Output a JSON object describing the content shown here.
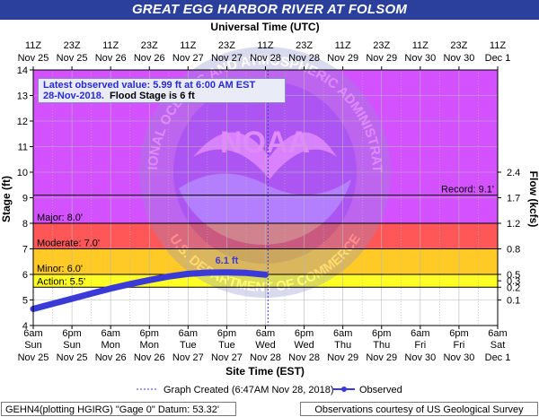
{
  "title": "GREAT EGG HARBOR RIVER AT FOLSOM",
  "top_axis_title": "Universal Time (UTC)",
  "bottom_axis_title": "Site Time (EST)",
  "left_axis_title": "Stage (ft)",
  "right_axis_title": "Flow (kcfs)",
  "top_ticks": [
    {
      "time": "11Z",
      "date": "Nov 25"
    },
    {
      "time": "23Z",
      "date": "Nov 25"
    },
    {
      "time": "11Z",
      "date": "Nov 26"
    },
    {
      "time": "23Z",
      "date": "Nov 26"
    },
    {
      "time": "11Z",
      "date": "Nov 27"
    },
    {
      "time": "23Z",
      "date": "Nov 27"
    },
    {
      "time": "11Z",
      "date": "Nov 28"
    },
    {
      "time": "23Z",
      "date": "Nov 28"
    },
    {
      "time": "11Z",
      "date": "Nov 29"
    },
    {
      "time": "23Z",
      "date": "Nov 29"
    },
    {
      "time": "11Z",
      "date": "Nov 30"
    },
    {
      "time": "23Z",
      "date": "Nov 30"
    },
    {
      "time": "11Z",
      "date": "Dec 1"
    }
  ],
  "bottom_ticks": [
    {
      "time": "6am",
      "day": "Sun",
      "date": "Nov 25"
    },
    {
      "time": "6pm",
      "day": "Sun",
      "date": "Nov 25"
    },
    {
      "time": "6am",
      "day": "Mon",
      "date": "Nov 26"
    },
    {
      "time": "6pm",
      "day": "Mon",
      "date": "Nov 26"
    },
    {
      "time": "6am",
      "day": "Tue",
      "date": "Nov 27"
    },
    {
      "time": "6pm",
      "day": "Tue",
      "date": "Nov 27"
    },
    {
      "time": "6am",
      "day": "Wed",
      "date": "Nov 28"
    },
    {
      "time": "6pm",
      "day": "Wed",
      "date": "Nov 28"
    },
    {
      "time": "6am",
      "day": "Thu",
      "date": "Nov 29"
    },
    {
      "time": "6pm",
      "day": "Thu",
      "date": "Nov 29"
    },
    {
      "time": "6am",
      "day": "Fri",
      "date": "Nov 30"
    },
    {
      "time": "6pm",
      "day": "Fri",
      "date": "Nov 30"
    },
    {
      "time": "6am",
      "day": "Sat",
      "date": "Dec 1"
    }
  ],
  "stage_ticks": [
    4,
    5,
    6,
    7,
    8,
    9,
    10,
    11,
    12,
    13,
    14
  ],
  "flow_ticks": [
    {
      "label": "0.1",
      "stage": 5.0
    },
    {
      "label": "0.2",
      "stage": 5.5
    },
    {
      "label": "0.3",
      "stage": 5.75
    },
    {
      "label": "0.5",
      "stage": 6.0
    },
    {
      "label": "0.8",
      "stage": 7.0
    },
    {
      "label": "1.2",
      "stage": 8.0
    },
    {
      "label": "1.7",
      "stage": 9.0
    },
    {
      "label": "2.4",
      "stage": 10.0
    }
  ],
  "flood_categories": [
    {
      "name": "Action",
      "label": "Action: 5.5'",
      "stage": 5.5,
      "color": "#ffff00"
    },
    {
      "name": "Minor",
      "label": "Minor: 6.0'",
      "stage": 6.0,
      "color": "#ffc000"
    },
    {
      "name": "Moderate",
      "label": "Moderate: 7.0'",
      "stage": 7.0,
      "color": "#ff3a3a"
    },
    {
      "name": "Major",
      "label": "Major: 8.0'",
      "stage": 8.0,
      "color": "#cc33ff"
    }
  ],
  "record": {
    "label": "Record: 9.1'",
    "stage": 9.1
  },
  "latest": {
    "line1": "Latest observed value: 5.99 ft at 6:00 AM EST",
    "date": "28-Nov-2018.",
    "flood_stage_text": "Flood Stage is 6 ft"
  },
  "peak_label": "6.1 ft",
  "watermark": {
    "top_text": "NATIONAL OCEANIC AND ATMOSPHERIC ADMINISTRATION",
    "bottom_text": "U.S. DEPARTMENT OF COMMERCE",
    "center_text": "NOAA"
  },
  "legend": {
    "graph_created": "Graph Created (6:47AM Nov 28, 2018)",
    "observed": "Observed"
  },
  "footer": {
    "left": "GEHN4(plotting HGIRG) \"Gage 0\" Datum: 53.32'",
    "right": "Observations courtesy of US Geological Survey"
  },
  "colors": {
    "observed": "#3a3ad8",
    "created_line": "#3a3ad8",
    "title_bg": "#2b3f9c",
    "grid": "#b8b8b8"
  },
  "chart_data": {
    "type": "line",
    "title": "GREAT EGG HARBOR RIVER AT FOLSOM",
    "xlabel": "Site Time (EST)",
    "ylabel": "Stage (ft)",
    "y2label": "Flow (kcfs)",
    "x_unit": "hours since Sun Nov 25 6am EST",
    "xlim": [
      0,
      144
    ],
    "ylim": [
      4,
      14
    ],
    "graph_created_hour": 72.78,
    "series": [
      {
        "name": "Observed",
        "x": [
          0,
          6,
          12,
          18,
          24,
          30,
          36,
          42,
          48,
          54,
          60,
          66,
          72
        ],
        "values": [
          4.65,
          4.85,
          5.05,
          5.25,
          5.45,
          5.62,
          5.78,
          5.92,
          6.02,
          6.07,
          6.08,
          6.06,
          5.99
        ]
      }
    ],
    "peak": {
      "x": 60,
      "value": 6.1,
      "label": "6.1 ft"
    }
  }
}
